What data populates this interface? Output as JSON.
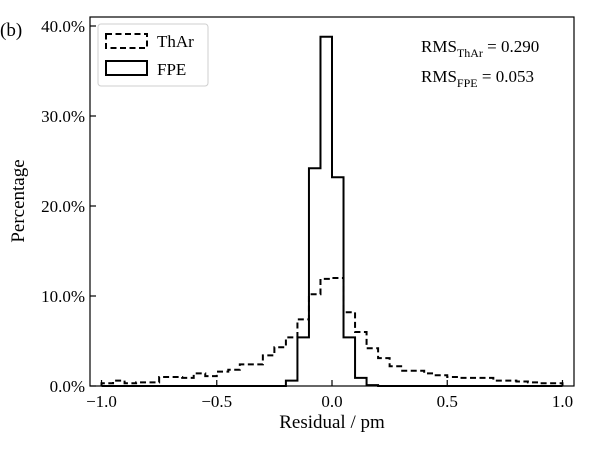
{
  "chart_data": {
    "type": "histogram",
    "panel_label": "(b)",
    "xlabel": "Residual / pm",
    "ylabel": "Percentage",
    "xlim": [
      -1.05,
      1.05
    ],
    "ylim": [
      0,
      41
    ],
    "x_ticks": [
      -1.0,
      -0.5,
      0.0,
      0.5,
      1.0
    ],
    "x_tick_labels": [
      "−1.0",
      "−0.5",
      "0.0",
      "0.5",
      "1.0"
    ],
    "y_ticks": [
      0,
      10,
      20,
      30,
      40
    ],
    "y_tick_labels": [
      "0.0%",
      "10.0%",
      "20.0%",
      "30.0%",
      "40.0%"
    ],
    "bin_edges": [
      -1.0,
      -0.95,
      -0.9,
      -0.85,
      -0.8,
      -0.75,
      -0.7,
      -0.65,
      -0.6,
      -0.55,
      -0.5,
      -0.45,
      -0.4,
      -0.35,
      -0.3,
      -0.25,
      -0.2,
      -0.15,
      -0.1,
      -0.05,
      0.0,
      0.05,
      0.1,
      0.15,
      0.2,
      0.25,
      0.3,
      0.35,
      0.4,
      0.45,
      0.5,
      0.55,
      0.6,
      0.65,
      0.7,
      0.75,
      0.8,
      0.85,
      0.9,
      0.95,
      1.0
    ],
    "series": [
      {
        "name": "ThAr",
        "line_style": "dashed",
        "values": [
          0.3,
          0.6,
          0.3,
          0.4,
          0.4,
          1.0,
          1.0,
          0.9,
          1.4,
          1.1,
          1.6,
          1.8,
          2.4,
          2.4,
          3.4,
          4.3,
          5.4,
          7.4,
          10.2,
          11.9,
          12.0,
          8.2,
          6.0,
          4.2,
          3.1,
          2.2,
          1.7,
          1.7,
          1.4,
          1.2,
          1.0,
          0.9,
          0.9,
          0.9,
          0.6,
          0.6,
          0.5,
          0.4,
          0.3,
          0.3
        ]
      },
      {
        "name": "FPE",
        "line_style": "solid",
        "values": [
          0,
          0,
          0,
          0,
          0,
          0,
          0,
          0,
          0,
          0,
          0,
          0,
          0,
          0,
          0,
          0,
          0.6,
          5.4,
          24.2,
          38.8,
          23.2,
          5.4,
          0.9,
          0.1,
          0,
          0,
          0,
          0,
          0,
          0,
          0,
          0,
          0,
          0,
          0,
          0,
          0,
          0,
          0,
          0
        ]
      }
    ],
    "legend": {
      "position": "top-left",
      "entries": [
        "ThAr",
        "FPE"
      ]
    },
    "annotations": [
      {
        "base": "RMS",
        "sub": "ThAr",
        "rest": " = 0.290"
      },
      {
        "base": "RMS",
        "sub": "FPE",
        "rest": " = 0.053"
      }
    ]
  }
}
